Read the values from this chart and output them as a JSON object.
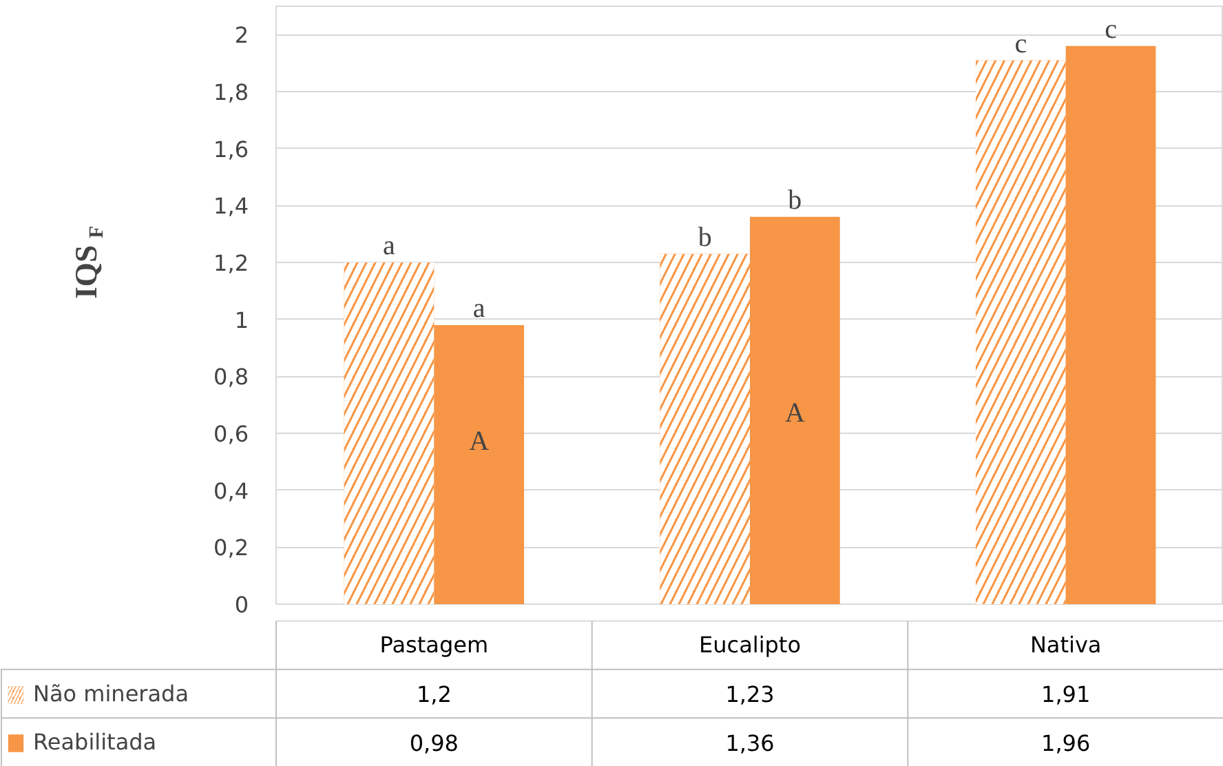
{
  "chart_data": {
    "type": "bar",
    "ylabel": "IQS$_{F}$",
    "categories": [
      "Pastagem",
      "Eucalipto",
      "Nativa"
    ],
    "series": [
      {
        "name": "Não minerada",
        "color": "#f79646",
        "values": [
          1.2,
          1.23,
          1.91
        ],
        "value_labels": [
          "1,2",
          "1,23",
          "1,91"
        ]
      },
      {
        "name": "Reabilitada",
        "color": "#f79646",
        "values": [
          0.98,
          1.36,
          1.96
        ],
        "value_labels": [
          "0,98",
          "1,36",
          "1,96"
        ]
      }
    ],
    "ylim": [
      0,
      2.1
    ],
    "yticks": [
      0,
      {
        "value": 0.2,
        "label": "0,2"
      },
      {
        "value": 0.4,
        "label": "0,4"
      },
      {
        "value": 0.6,
        "label": "0,6"
      },
      {
        "value": 0.8,
        "label": "0,8"
      },
      1,
      {
        "value": 1.2,
        "label": "1,2"
      },
      {
        "value": 1.4,
        "label": "1,4"
      },
      {
        "value": 1.6,
        "label": "1,6"
      },
      {
        "value": 1.8,
        "label": "1,8"
      },
      2
    ],
    "grid": "y",
    "legend": "bottom",
    "annotations": [
      {
        "text": "a",
        "x": "Pastagem",
        "y": 1.2
      },
      {
        "text": "a",
        "x": "Pastagem",
        "y": 0.98
      },
      {
        "text": "b",
        "x": "Eucalipto",
        "y": 1.23
      },
      {
        "text": "b",
        "x": "Eucalipto",
        "y": 1.36
      },
      {
        "text": "c",
        "x": "Nativa",
        "y": 1.91
      },
      {
        "text": "c",
        "x": "Nativa",
        "y": 1.96
      },
      {
        "text": "A",
        "x": "Pastagem",
        "y": 0.57
      },
      {
        "text": "A",
        "x": "Eucalipto",
        "y": 0.67
      }
    ]
  }
}
